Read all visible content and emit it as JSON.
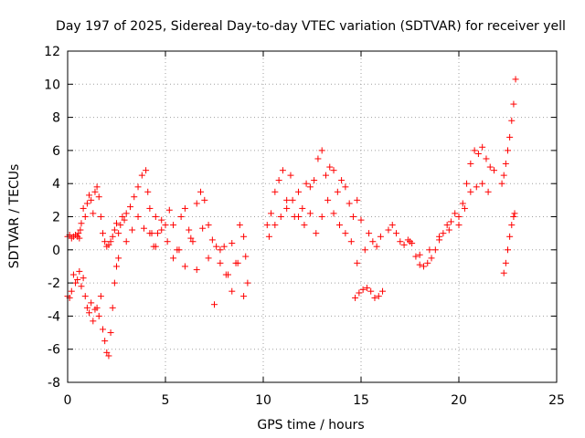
{
  "chart_data": {
    "type": "scatter",
    "title": "Day 197 of 2025, Sidereal Day-to-day VTEC variation (SDTVAR) for receiver yell",
    "xlabel": "GPS time / hours",
    "ylabel": "SDTVAR / TECUs",
    "xlim": [
      0,
      25
    ],
    "ylim": [
      -8,
      12
    ],
    "grid": true,
    "marker": "+",
    "marker_color": "#ff0000",
    "x_ticks": [
      {
        "value": 0,
        "label": "0"
      },
      {
        "value": 5,
        "label": "5"
      },
      {
        "value": 10,
        "label": "10"
      },
      {
        "value": 15,
        "label": "15"
      },
      {
        "value": 20,
        "label": "20"
      },
      {
        "value": 25,
        "label": "25"
      }
    ],
    "y_ticks": [
      {
        "value": -8,
        "label": "-8"
      },
      {
        "value": -6,
        "label": "-6"
      },
      {
        "value": -4,
        "label": "-4"
      },
      {
        "value": -2,
        "label": "-2"
      },
      {
        "value": 0,
        "label": "0"
      },
      {
        "value": 2,
        "label": "2"
      },
      {
        "value": 4,
        "label": "4"
      },
      {
        "value": 6,
        "label": "6"
      },
      {
        "value": 8,
        "label": "8"
      },
      {
        "value": 10,
        "label": "10"
      },
      {
        "value": 12,
        "label": "12"
      }
    ],
    "series": [
      {
        "name": "SDTVAR",
        "x": [
          0.0,
          0.1,
          0.2,
          0.3,
          0.4,
          0.5,
          0.55,
          0.6,
          0.65,
          0.7,
          0.8,
          0.9,
          1.0,
          1.1,
          1.2,
          1.3,
          1.4,
          1.5,
          1.6,
          1.7,
          1.8,
          1.9,
          2.0,
          2.1,
          2.2,
          2.3,
          2.4,
          2.5,
          2.6,
          2.7,
          2.8,
          2.9,
          3.0,
          3.2,
          3.4,
          3.6,
          3.8,
          4.0,
          4.1,
          4.2,
          4.3,
          4.4,
          4.5,
          4.6,
          4.8,
          5.0,
          5.2,
          5.4,
          5.6,
          5.8,
          6.0,
          6.2,
          6.4,
          6.6,
          6.8,
          7.0,
          7.2,
          7.4,
          7.6,
          7.8,
          8.0,
          8.2,
          8.4,
          8.6,
          8.8,
          9.0,
          9.1,
          9.2,
          0.0,
          0.1,
          0.2,
          0.3,
          0.4,
          0.5,
          0.6,
          0.7,
          0.8,
          0.9,
          1.0,
          1.1,
          1.2,
          1.3,
          1.4,
          1.5,
          1.6,
          1.7,
          1.8,
          1.9,
          2.0,
          2.1,
          2.2,
          2.3,
          2.4,
          2.5,
          2.6,
          3.0,
          3.3,
          3.6,
          3.9,
          4.2,
          4.5,
          4.8,
          5.1,
          5.4,
          5.7,
          6.0,
          6.3,
          6.6,
          6.9,
          7.2,
          7.5,
          7.8,
          8.1,
          8.4,
          8.7,
          9.0,
          10.2,
          10.4,
          10.6,
          10.8,
          11.0,
          11.2,
          11.4,
          11.6,
          11.8,
          12.0,
          12.2,
          12.4,
          12.6,
          12.8,
          13.0,
          13.2,
          13.4,
          13.6,
          13.8,
          14.0,
          14.2,
          14.4,
          14.6,
          14.8,
          15.0,
          15.2,
          15.4,
          15.6,
          15.8,
          16.0,
          10.3,
          10.6,
          10.9,
          11.2,
          11.5,
          11.8,
          12.1,
          12.4,
          12.7,
          13.0,
          13.3,
          13.6,
          13.9,
          14.2,
          14.5,
          14.8,
          14.7,
          14.9,
          15.1,
          15.3,
          15.5,
          15.7,
          15.9,
          16.1,
          16.4,
          16.6,
          16.8,
          17.0,
          17.2,
          17.4,
          17.6,
          17.8,
          18.0,
          18.2,
          18.4,
          18.6,
          18.8,
          19.0,
          19.2,
          19.4,
          19.6,
          19.8,
          20.0,
          20.2,
          20.4,
          20.6,
          20.8,
          21.0,
          21.2,
          21.4,
          21.6,
          21.8,
          17.5,
          18.0,
          18.5,
          19.0,
          19.5,
          20.0,
          20.3,
          20.6,
          20.9,
          21.2,
          21.5,
          22.2,
          22.3,
          22.4,
          22.5,
          22.6,
          22.7,
          22.8,
          22.9,
          22.3,
          22.4,
          22.5,
          22.6,
          22.7,
          22.8,
          22.85
        ],
        "y": [
          0.8,
          0.9,
          0.7,
          0.8,
          0.9,
          0.8,
          1.0,
          0.7,
          1.2,
          1.6,
          2.5,
          2.0,
          2.8,
          3.3,
          3.0,
          2.2,
          3.5,
          3.8,
          3.2,
          2.0,
          1.0,
          0.5,
          0.2,
          0.3,
          0.5,
          0.8,
          1.2,
          1.6,
          1.0,
          1.5,
          2.0,
          1.8,
          2.2,
          2.6,
          3.2,
          3.8,
          4.5,
          4.8,
          3.5,
          2.5,
          1.0,
          0.2,
          2.0,
          1.0,
          1.8,
          1.5,
          2.4,
          1.5,
          0.0,
          2.0,
          2.5,
          1.2,
          0.5,
          2.8,
          3.5,
          3.0,
          1.5,
          0.6,
          0.2,
          -0.8,
          0.2,
          -1.5,
          0.4,
          -0.8,
          1.5,
          0.8,
          -0.4,
          -2.0,
          -2.8,
          -2.9,
          -2.5,
          -1.5,
          -2.0,
          -1.8,
          -1.3,
          -2.2,
          -1.7,
          -2.8,
          -3.5,
          -3.8,
          -3.2,
          -4.3,
          -3.6,
          -3.5,
          -4.0,
          -2.8,
          -4.8,
          -5.5,
          -6.2,
          -6.4,
          -5.0,
          -3.5,
          -2.0,
          -1.0,
          -0.5,
          0.5,
          1.2,
          2.0,
          1.3,
          1.0,
          0.2,
          1.2,
          0.5,
          -0.5,
          0.0,
          -1.0,
          0.7,
          -1.2,
          1.3,
          -0.5,
          -3.3,
          0.0,
          -1.5,
          -2.5,
          -0.8,
          -2.8,
          1.5,
          2.2,
          3.5,
          4.2,
          4.8,
          3.0,
          4.5,
          2.0,
          3.5,
          2.5,
          4.0,
          3.8,
          4.2,
          5.5,
          6.0,
          4.5,
          5.0,
          4.8,
          3.5,
          4.2,
          3.8,
          2.8,
          2.0,
          3.0,
          1.8,
          0.0,
          1.0,
          0.5,
          0.2,
          0.8,
          0.8,
          1.5,
          2.0,
          2.5,
          3.0,
          2.0,
          1.5,
          2.2,
          1.0,
          2.0,
          3.0,
          2.2,
          1.5,
          1.0,
          0.5,
          -0.8,
          -2.9,
          -2.6,
          -2.4,
          -2.3,
          -2.5,
          -2.9,
          -2.8,
          -2.5,
          1.2,
          1.5,
          1.0,
          0.5,
          0.3,
          0.6,
          0.4,
          -0.4,
          -0.9,
          -1.0,
          -0.8,
          -0.5,
          0.0,
          0.6,
          1.0,
          1.5,
          1.7,
          2.2,
          2.0,
          2.8,
          4.0,
          5.2,
          6.0,
          5.8,
          6.2,
          5.5,
          5.0,
          4.8,
          0.5,
          -0.3,
          0.0,
          0.8,
          1.2,
          1.5,
          2.5,
          3.5,
          3.8,
          4.0,
          3.5,
          4.0,
          4.5,
          5.2,
          6.0,
          6.8,
          7.8,
          8.8,
          10.3,
          -1.4,
          -0.8,
          0.0,
          0.8,
          1.5,
          2.0,
          2.2
        ]
      }
    ]
  }
}
